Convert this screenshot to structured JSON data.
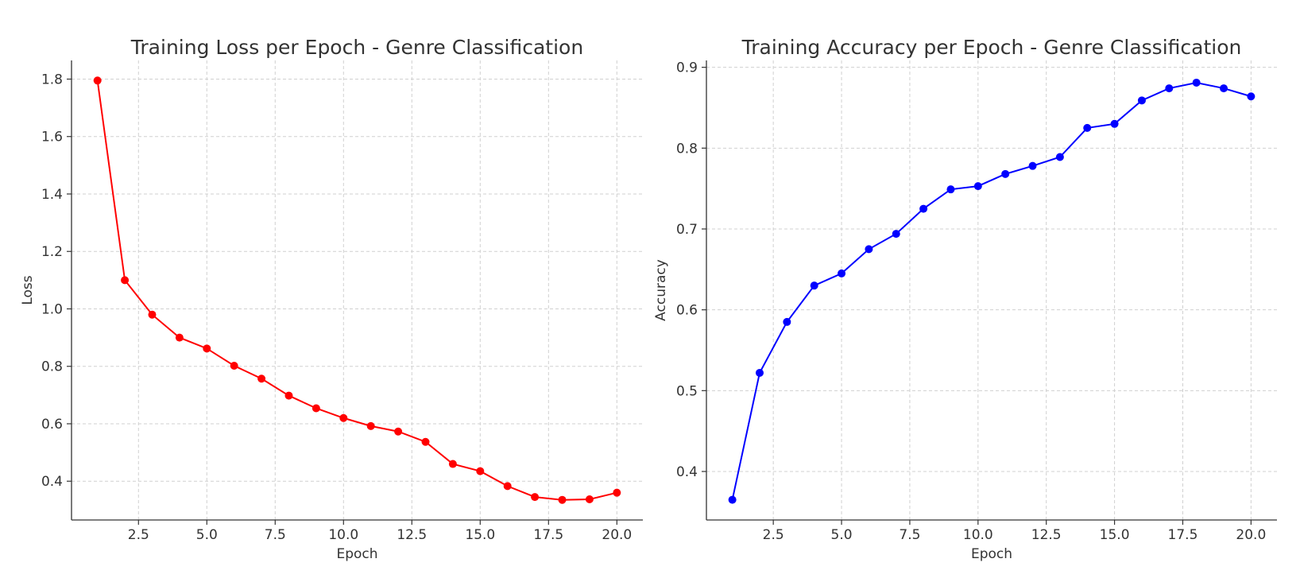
{
  "chart_data": [
    {
      "type": "line",
      "title": "Training Loss per Epoch - Genre Classification",
      "xlabel": "Epoch",
      "ylabel": "Loss",
      "xlim": [
        0.05,
        20.95
      ],
      "ylim": [
        0.265,
        1.865
      ],
      "xticks": [
        2.5,
        5.0,
        7.5,
        10.0,
        12.5,
        15.0,
        17.5,
        20.0
      ],
      "xtick_labels": [
        "2.5",
        "5.0",
        "7.5",
        "10.0",
        "12.5",
        "15.0",
        "17.5",
        "20.0"
      ],
      "yticks": [
        0.4,
        0.6,
        0.8,
        1.0,
        1.2,
        1.4,
        1.6,
        1.8
      ],
      "ytick_labels": [
        "0.4",
        "0.6",
        "0.8",
        "1.0",
        "1.2",
        "1.4",
        "1.6",
        "1.8"
      ],
      "grid": true,
      "color": "#ff0000",
      "x": [
        1,
        2,
        3,
        4,
        5,
        6,
        7,
        8,
        9,
        10,
        11,
        12,
        13,
        14,
        15,
        16,
        17,
        18,
        19,
        20
      ],
      "y": [
        1.795,
        1.1,
        0.98,
        0.9,
        0.862,
        0.802,
        0.757,
        0.698,
        0.654,
        0.62,
        0.592,
        0.573,
        0.537,
        0.46,
        0.435,
        0.383,
        0.345,
        0.335,
        0.337,
        0.36
      ]
    },
    {
      "type": "line",
      "title": "Training Accuracy per Epoch - Genre Classification",
      "xlabel": "Epoch",
      "ylabel": "Accuracy",
      "xlim": [
        0.05,
        20.95
      ],
      "ylim": [
        0.34,
        0.9085
      ],
      "xticks": [
        2.5,
        5.0,
        7.5,
        10.0,
        12.5,
        15.0,
        17.5,
        20.0
      ],
      "xtick_labels": [
        "2.5",
        "5.0",
        "7.5",
        "10.0",
        "12.5",
        "15.0",
        "17.5",
        "20.0"
      ],
      "yticks": [
        0.4,
        0.5,
        0.6,
        0.7,
        0.8,
        0.9
      ],
      "ytick_labels": [
        "0.4",
        "0.5",
        "0.6",
        "0.7",
        "0.8",
        "0.9"
      ],
      "grid": true,
      "color": "#0000ff",
      "x": [
        1,
        2,
        3,
        4,
        5,
        6,
        7,
        8,
        9,
        10,
        11,
        12,
        13,
        14,
        15,
        16,
        17,
        18,
        19,
        20
      ],
      "y": [
        0.365,
        0.522,
        0.585,
        0.63,
        0.645,
        0.675,
        0.694,
        0.725,
        0.749,
        0.753,
        0.768,
        0.778,
        0.789,
        0.825,
        0.83,
        0.859,
        0.874,
        0.881,
        0.874,
        0.864
      ]
    }
  ]
}
